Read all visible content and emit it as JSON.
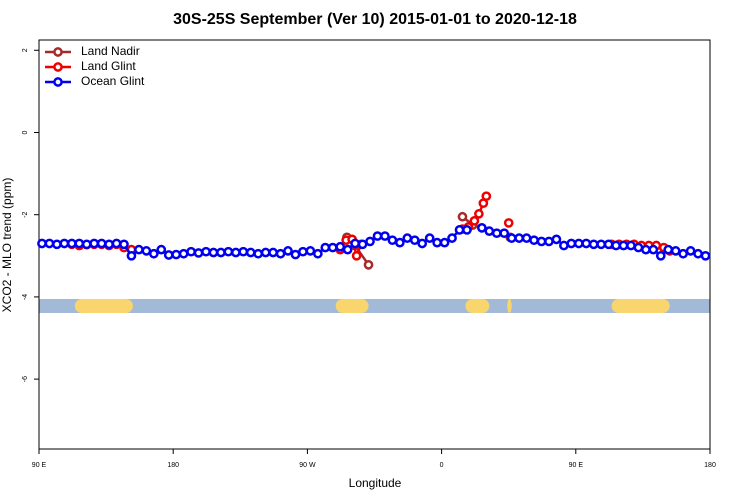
{
  "chart_data": {
    "type": "line",
    "title": "30S-25S September (Ver 10)   2015-01-01 to 2020-12-18",
    "x_label": "Longitude",
    "y_label": "XCO2 - MLO trend (ppm)",
    "xlim": [
      90,
      540
    ],
    "xticks": [
      {
        "value": 90,
        "label": "90 E"
      },
      180,
      {
        "value": 270,
        "label": "90 W"
      },
      {
        "value": 360,
        "label": "0"
      },
      {
        "value": 450,
        "label": "90 E"
      },
      {
        "value": 540,
        "label": "180"
      }
    ],
    "ylim": [
      -7.7,
      2.25
    ],
    "yticks": [
      -6,
      -4,
      -2,
      0,
      2
    ],
    "legend": "top-left",
    "land_spans": [
      [
        114,
        153
      ],
      [
        289,
        311
      ],
      [
        376,
        392
      ],
      [
        404,
        407
      ],
      [
        474,
        513
      ]
    ],
    "series": [
      {
        "name": "Land Nadir",
        "color": "#a52a2a",
        "x": [
          296.5,
          302,
          311,
          340,
          374,
          381,
          395,
          406
        ],
        "values": [
          -2.55,
          -2.75,
          -3.22,
          null,
          -2.05,
          -2.25,
          null,
          -2.55
        ]
      },
      {
        "name": "Land Glint",
        "color": "#ee0000",
        "x": [
          112,
          117,
          122,
          127,
          132,
          137,
          142,
          147,
          152,
          200,
          292,
          296,
          300,
          303,
          306,
          340,
          374,
          378,
          382,
          385,
          388,
          390,
          398,
          405,
          440,
          474,
          479,
          484,
          489,
          494,
          499,
          504,
          509,
          513
        ],
        "values": [
          -2.72,
          -2.75,
          -2.73,
          -2.72,
          -2.72,
          -2.75,
          -2.72,
          -2.8,
          -2.85,
          null,
          -2.85,
          -2.62,
          -2.6,
          -3.0,
          -2.72,
          null,
          -2.35,
          -2.3,
          -2.15,
          -1.98,
          -1.72,
          -1.55,
          null,
          -2.2,
          null,
          -2.72,
          -2.72,
          -2.72,
          -2.72,
          -2.75,
          -2.75,
          -2.75,
          -2.8,
          -2.88
        ]
      },
      {
        "name": "Ocean Glint",
        "color": "#0000ee",
        "x": [
          92,
          97,
          102,
          107,
          112,
          117,
          122,
          127,
          132,
          137,
          142,
          147,
          152,
          157,
          162,
          167,
          172,
          177,
          182,
          187,
          192,
          197,
          202,
          207,
          212,
          217,
          222,
          227,
          232,
          237,
          242,
          247,
          252,
          257,
          262,
          267,
          272,
          277,
          282,
          287,
          292,
          297,
          302,
          307,
          312,
          317,
          322,
          327,
          332,
          337,
          342,
          347,
          352,
          357,
          362,
          367,
          372,
          377,
          382,
          387,
          392,
          397,
          402,
          407,
          412,
          417,
          422,
          427,
          432,
          437,
          442,
          447,
          452,
          457,
          462,
          467,
          472,
          477,
          482,
          487,
          492,
          497,
          502,
          507,
          512,
          517,
          522,
          527,
          532,
          537
        ],
        "values": [
          -2.7,
          -2.7,
          -2.72,
          -2.7,
          -2.7,
          -2.7,
          -2.72,
          -2.7,
          -2.7,
          -2.72,
          -2.7,
          -2.72,
          -3.0,
          -2.85,
          -2.88,
          -2.95,
          -2.85,
          -2.98,
          -2.97,
          -2.95,
          -2.9,
          -2.93,
          -2.9,
          -2.92,
          -2.92,
          -2.9,
          -2.92,
          -2.9,
          -2.92,
          -2.95,
          -2.92,
          -2.92,
          -2.95,
          -2.88,
          -2.97,
          -2.9,
          -2.88,
          -2.95,
          -2.8,
          -2.8,
          -2.78,
          -2.85,
          -2.7,
          -2.72,
          -2.65,
          -2.52,
          -2.52,
          -2.62,
          -2.68,
          -2.57,
          -2.62,
          -2.7,
          -2.57,
          -2.68,
          -2.68,
          -2.57,
          -2.37,
          -2.37,
          null,
          -2.32,
          -2.4,
          -2.45,
          -2.45,
          -2.57,
          -2.57,
          -2.57,
          -2.62,
          -2.65,
          -2.65,
          -2.6,
          -2.75,
          -2.7,
          -2.7,
          -2.7,
          -2.72,
          -2.72,
          -2.72,
          -2.75,
          -2.75,
          -2.75,
          -2.8,
          -2.85,
          -2.85,
          -3.0,
          -2.85,
          -2.88,
          -2.95,
          -2.88,
          -2.95,
          -3.0
        ]
      }
    ]
  }
}
